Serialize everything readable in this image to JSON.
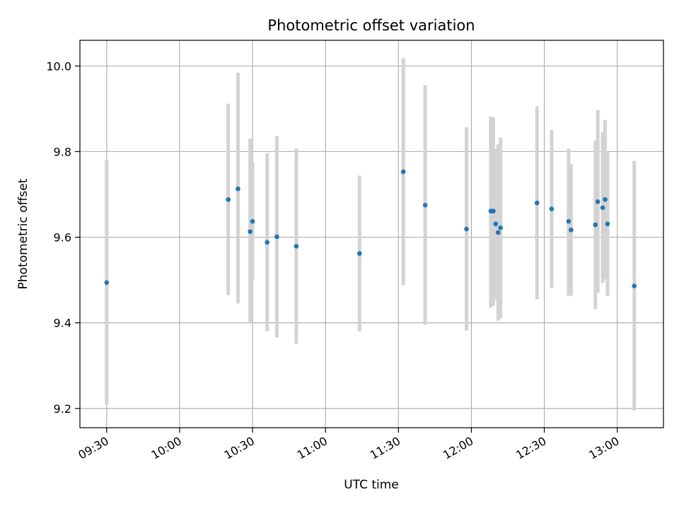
{
  "chart_data": {
    "type": "scatter",
    "title": "Photometric offset variation",
    "xlabel": "UTC time",
    "ylabel": "Photometric offset",
    "xlim": [
      "09:19",
      "13:19"
    ],
    "ylim": [
      9.155,
      10.06
    ],
    "x_ticks": [
      "09:30",
      "10:00",
      "10:30",
      "11:00",
      "11:30",
      "12:00",
      "12:30",
      "13:00"
    ],
    "y_ticks": [
      "9.2",
      "9.4",
      "9.6",
      "9.8",
      "10.0"
    ],
    "grid": true,
    "colors": {
      "point": "#1f77b4",
      "errorbar": "#d3d3d3",
      "grid": "#b0b0b0"
    },
    "points": [
      {
        "x": "09:30",
        "y": 9.494,
        "ylow": 9.209,
        "yhigh": 9.78
      },
      {
        "x": "10:20",
        "y": 9.688,
        "ylow": 9.465,
        "yhigh": 9.912
      },
      {
        "x": "10:24",
        "y": 9.713,
        "ylow": 9.445,
        "yhigh": 9.984
      },
      {
        "x": "10:29",
        "y": 9.613,
        "ylow": 9.4,
        "yhigh": 9.83
      },
      {
        "x": "10:30",
        "y": 9.637,
        "ylow": 9.5,
        "yhigh": 9.775
      },
      {
        "x": "10:36",
        "y": 9.588,
        "ylow": 9.38,
        "yhigh": 9.796
      },
      {
        "x": "10:40",
        "y": 9.601,
        "ylow": 9.366,
        "yhigh": 9.836
      },
      {
        "x": "10:48",
        "y": 9.579,
        "ylow": 9.351,
        "yhigh": 9.807
      },
      {
        "x": "11:14",
        "y": 9.562,
        "ylow": 9.38,
        "yhigh": 9.744
      },
      {
        "x": "11:32",
        "y": 9.753,
        "ylow": 9.488,
        "yhigh": 10.018
      },
      {
        "x": "11:41",
        "y": 9.675,
        "ylow": 9.395,
        "yhigh": 9.955
      },
      {
        "x": "11:58",
        "y": 9.619,
        "ylow": 9.382,
        "yhigh": 9.857
      },
      {
        "x": "12:08",
        "y": 9.661,
        "ylow": 9.436,
        "yhigh": 9.882
      },
      {
        "x": "12:09",
        "y": 9.661,
        "ylow": 9.44,
        "yhigh": 9.88
      },
      {
        "x": "12:10",
        "y": 9.631,
        "ylow": 9.455,
        "yhigh": 9.806
      },
      {
        "x": "12:11",
        "y": 9.611,
        "ylow": 9.405,
        "yhigh": 9.817
      },
      {
        "x": "12:12",
        "y": 9.622,
        "ylow": 9.41,
        "yhigh": 9.833
      },
      {
        "x": "12:27",
        "y": 9.68,
        "ylow": 9.455,
        "yhigh": 9.906
      },
      {
        "x": "12:33",
        "y": 9.666,
        "ylow": 9.482,
        "yhigh": 9.85
      },
      {
        "x": "12:40",
        "y": 9.637,
        "ylow": 9.463,
        "yhigh": 9.807
      },
      {
        "x": "12:41",
        "y": 9.617,
        "ylow": 9.463,
        "yhigh": 9.771
      },
      {
        "x": "12:51",
        "y": 9.629,
        "ylow": 9.432,
        "yhigh": 9.826
      },
      {
        "x": "12:52",
        "y": 9.683,
        "ylow": 9.47,
        "yhigh": 9.897
      },
      {
        "x": "12:54",
        "y": 9.669,
        "ylow": 9.493,
        "yhigh": 9.845
      },
      {
        "x": "12:55",
        "y": 9.688,
        "ylow": 9.502,
        "yhigh": 9.874
      },
      {
        "x": "12:56",
        "y": 9.631,
        "ylow": 9.463,
        "yhigh": 9.799
      },
      {
        "x": "13:07",
        "y": 9.486,
        "ylow": 9.195,
        "yhigh": 9.778
      }
    ]
  }
}
